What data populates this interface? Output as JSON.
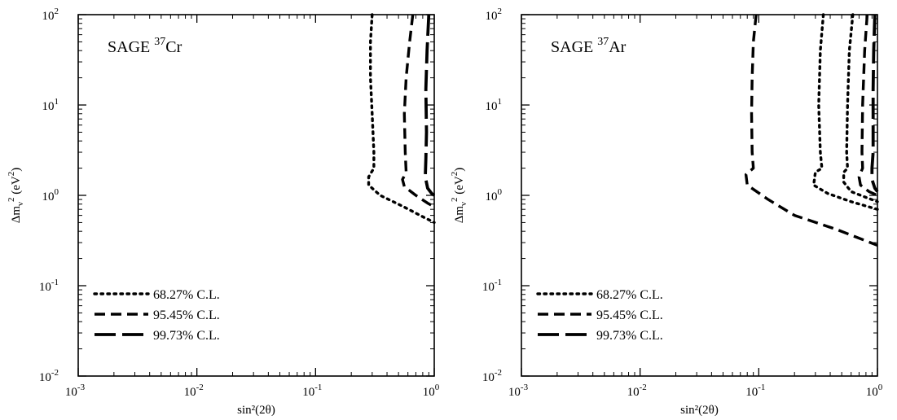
{
  "chart_data": [
    {
      "type": "line",
      "panel": "left",
      "title": "SAGE",
      "title_superscript": "37",
      "title_element": "Cr",
      "xlabel": "sin²(2θ)",
      "ylabel": "Δm_ν² (eV²)",
      "xscale": "log",
      "yscale": "log",
      "xlim": [
        0.001,
        1
      ],
      "ylim": [
        0.01,
        100
      ],
      "x_tick_exponents": [
        "-3",
        "-2",
        "-1",
        "0"
      ],
      "y_tick_exponents": [
        "-2",
        "-1",
        "1",
        "2"
      ],
      "x_tick_exponents_shown": [
        "-3",
        "-2",
        "-1",
        "0"
      ],
      "grid": false,
      "legend_position": "bottom-left",
      "series": [
        {
          "name": "68.27% C.L.",
          "style": "dotted",
          "points": [
            [
              0.3,
              100
            ],
            [
              0.29,
              50
            ],
            [
              0.29,
              20
            ],
            [
              0.3,
              8
            ],
            [
              0.31,
              3
            ],
            [
              0.31,
              2
            ],
            [
              0.28,
              1.6
            ],
            [
              0.28,
              1.3
            ],
            [
              0.35,
              1.0
            ],
            [
              0.55,
              0.75
            ],
            [
              0.8,
              0.58
            ],
            [
              1.0,
              0.5
            ]
          ]
        },
        {
          "name": "95.45% C.L.",
          "style": "dashed",
          "points": [
            [
              0.66,
              100
            ],
            [
              0.62,
              50
            ],
            [
              0.58,
              20
            ],
            [
              0.56,
              8
            ],
            [
              0.57,
              3
            ],
            [
              0.58,
              1.8
            ],
            [
              0.54,
              1.5
            ],
            [
              0.56,
              1.25
            ],
            [
              0.7,
              1.0
            ],
            [
              0.88,
              0.82
            ],
            [
              1.0,
              0.75
            ]
          ]
        },
        {
          "name": "99.73% C.L.",
          "style": "longdash",
          "points": [
            [
              0.9,
              100
            ],
            [
              0.87,
              40
            ],
            [
              0.85,
              15
            ],
            [
              0.86,
              5
            ],
            [
              0.85,
              2.5
            ],
            [
              0.84,
              1.6
            ],
            [
              0.88,
              1.2
            ],
            [
              0.95,
              1.05
            ],
            [
              1.0,
              1.0
            ]
          ]
        }
      ]
    },
    {
      "type": "line",
      "panel": "right",
      "title": "SAGE",
      "title_superscript": "37",
      "title_element": "Ar",
      "xlabel": "sin²(2θ)",
      "ylabel": "Δm_ν² (eV²)",
      "xscale": "log",
      "yscale": "log",
      "xlim": [
        0.001,
        1
      ],
      "ylim": [
        0.01,
        100
      ],
      "x_tick_exponents": [
        "-3",
        "-2",
        "-1",
        "0"
      ],
      "y_tick_exponents": [
        "-2",
        "-1",
        "1",
        "2"
      ],
      "grid": false,
      "legend_position": "bottom-left",
      "series": [
        {
          "name": "68.27% C.L.",
          "style": "dotted",
          "points": [
            [
              0.35,
              100
            ],
            [
              0.33,
              40
            ],
            [
              0.32,
              10
            ],
            [
              0.33,
              3
            ],
            [
              0.34,
              2
            ],
            [
              0.3,
              1.8
            ],
            [
              0.29,
              1.3
            ],
            [
              0.38,
              1.05
            ],
            [
              0.6,
              0.85
            ],
            [
              1.0,
              0.7
            ]
          ]
        },
        {
          "name": "95.45% C.L.",
          "style": "dashed",
          "points": [
            [
              0.095,
              100
            ],
            [
              0.09,
              50
            ],
            [
              0.088,
              20
            ],
            [
              0.087,
              8
            ],
            [
              0.088,
              3
            ],
            [
              0.09,
              2.0
            ],
            [
              0.078,
              1.7
            ],
            [
              0.08,
              1.3
            ],
            [
              0.12,
              0.9
            ],
            [
              0.2,
              0.6
            ],
            [
              0.45,
              0.42
            ],
            [
              1.0,
              0.28
            ]
          ]
        },
        {
          "name": "99.73% C.L.",
          "style": "longdash",
          "points": [
            [
              0.95,
              100
            ],
            [
              0.93,
              40
            ],
            [
              0.92,
              15
            ],
            [
              0.92,
              5
            ],
            [
              0.92,
              3
            ],
            [
              0.9,
              2
            ],
            [
              0.9,
              1.5
            ],
            [
              0.95,
              1.2
            ],
            [
              1.0,
              1.1
            ]
          ]
        }
      ],
      "extra_contours": [
        {
          "style": "dotted",
          "points": [
            [
              0.62,
              100
            ],
            [
              0.58,
              40
            ],
            [
              0.56,
              10
            ],
            [
              0.55,
              3
            ],
            [
              0.56,
              2
            ],
            [
              0.52,
              1.8
            ],
            [
              0.52,
              1.4
            ],
            [
              0.6,
              1.1
            ],
            [
              0.8,
              0.95
            ],
            [
              1.0,
              0.85
            ]
          ]
        },
        {
          "style": "dashed",
          "points": [
            [
              0.82,
              100
            ],
            [
              0.78,
              40
            ],
            [
              0.75,
              10
            ],
            [
              0.74,
              3
            ],
            [
              0.75,
              2
            ],
            [
              0.7,
              1.6
            ],
            [
              0.72,
              1.3
            ],
            [
              0.85,
              1.1
            ],
            [
              1.0,
              1.0
            ]
          ]
        }
      ]
    }
  ]
}
